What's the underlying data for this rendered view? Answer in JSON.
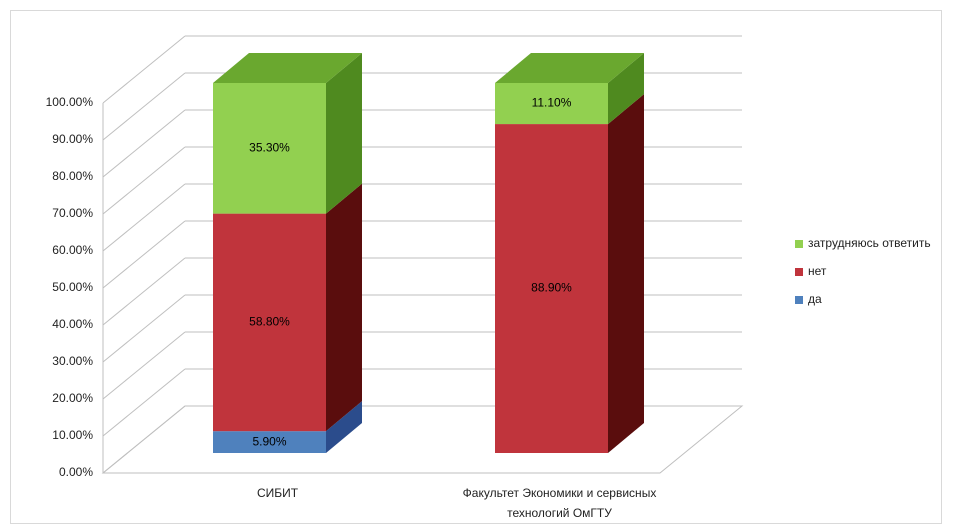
{
  "chart_data": {
    "type": "bar",
    "stacked": true,
    "three_d": true,
    "categories": [
      "СИБИТ",
      "Факультет Экономики и сервисных технологий ОмГТУ"
    ],
    "category_label_lines": [
      [
        "СИБИТ"
      ],
      [
        "Факультет Экономики и сервисных",
        "технологий ОмГТУ"
      ]
    ],
    "series": [
      {
        "name": "да",
        "values": [
          5.9,
          0
        ],
        "labels": [
          "5.90%",
          ""
        ],
        "color": "#4f81bd",
        "side_color": "#2b4c8c",
        "top_color": "#6f9fd8"
      },
      {
        "name": "нет",
        "values": [
          58.8,
          88.9
        ],
        "labels": [
          "58.80%",
          "88.90%"
        ],
        "color": "#c0343c",
        "side_color": "#5a0d0d",
        "top_color": "#d04a50"
      },
      {
        "name": "затрудняюсь ответить",
        "values": [
          35.3,
          11.1
        ],
        "labels": [
          "35.30%",
          "11.10%"
        ],
        "color": "#92d050",
        "side_color": "#4f8a1f",
        "top_color": "#6aa82f"
      }
    ],
    "legend_order": [
      "затрудняюсь ответить",
      "нет",
      "да"
    ],
    "legend_position": "right",
    "y_ticks": [
      "0.00%",
      "10.00%",
      "20.00%",
      "30.00%",
      "40.00%",
      "50.00%",
      "60.00%",
      "70.00%",
      "80.00%",
      "90.00%",
      "100.00%"
    ],
    "ylim": [
      0,
      100
    ],
    "grid": true,
    "title": "",
    "xlabel": "",
    "ylabel": ""
  }
}
